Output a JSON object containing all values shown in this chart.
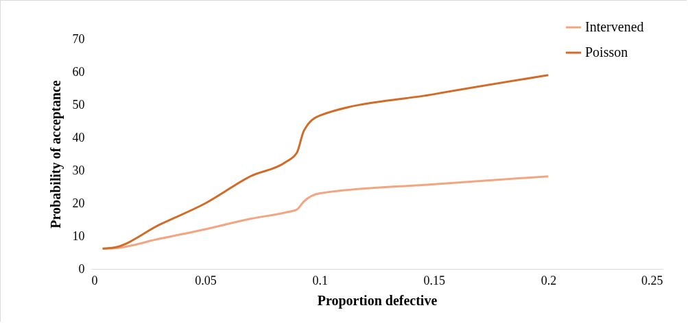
{
  "chart_data": {
    "type": "line",
    "xlabel": "Proportion defective",
    "ylabel": "Probability of acceptance",
    "xlim": [
      0,
      0.25
    ],
    "xticks": [
      0,
      0.05,
      0.1,
      0.15,
      0.2,
      0.25
    ],
    "ylim": [
      0,
      70
    ],
    "yticks": [
      0,
      10,
      20,
      30,
      40,
      50,
      60,
      70
    ],
    "grid": false,
    "legend": "top right",
    "marker": "none",
    "line_style": "solid",
    "series": [
      {
        "name": "Intervened",
        "color": "#f4a47f",
        "x": [
          0.005,
          0.01,
          0.03,
          0.05,
          0.07,
          0.085,
          0.09,
          0.093,
          0.1,
          0.15,
          0.2
        ],
        "values": [
          6.2,
          6.3,
          9.2,
          12.1,
          15.3,
          17.2,
          18.1,
          20.5,
          23,
          25.8,
          28.2
        ]
      },
      {
        "name": "Poisson",
        "color": "#d26b27",
        "x": [
          0.005,
          0.01,
          0.03,
          0.05,
          0.07,
          0.085,
          0.09,
          0.093,
          0.1,
          0.15,
          0.2
        ],
        "values": [
          6.2,
          6.5,
          13.5,
          20,
          28.3,
          32.5,
          35.4,
          42,
          46.7,
          53.2,
          59
        ]
      }
    ]
  }
}
